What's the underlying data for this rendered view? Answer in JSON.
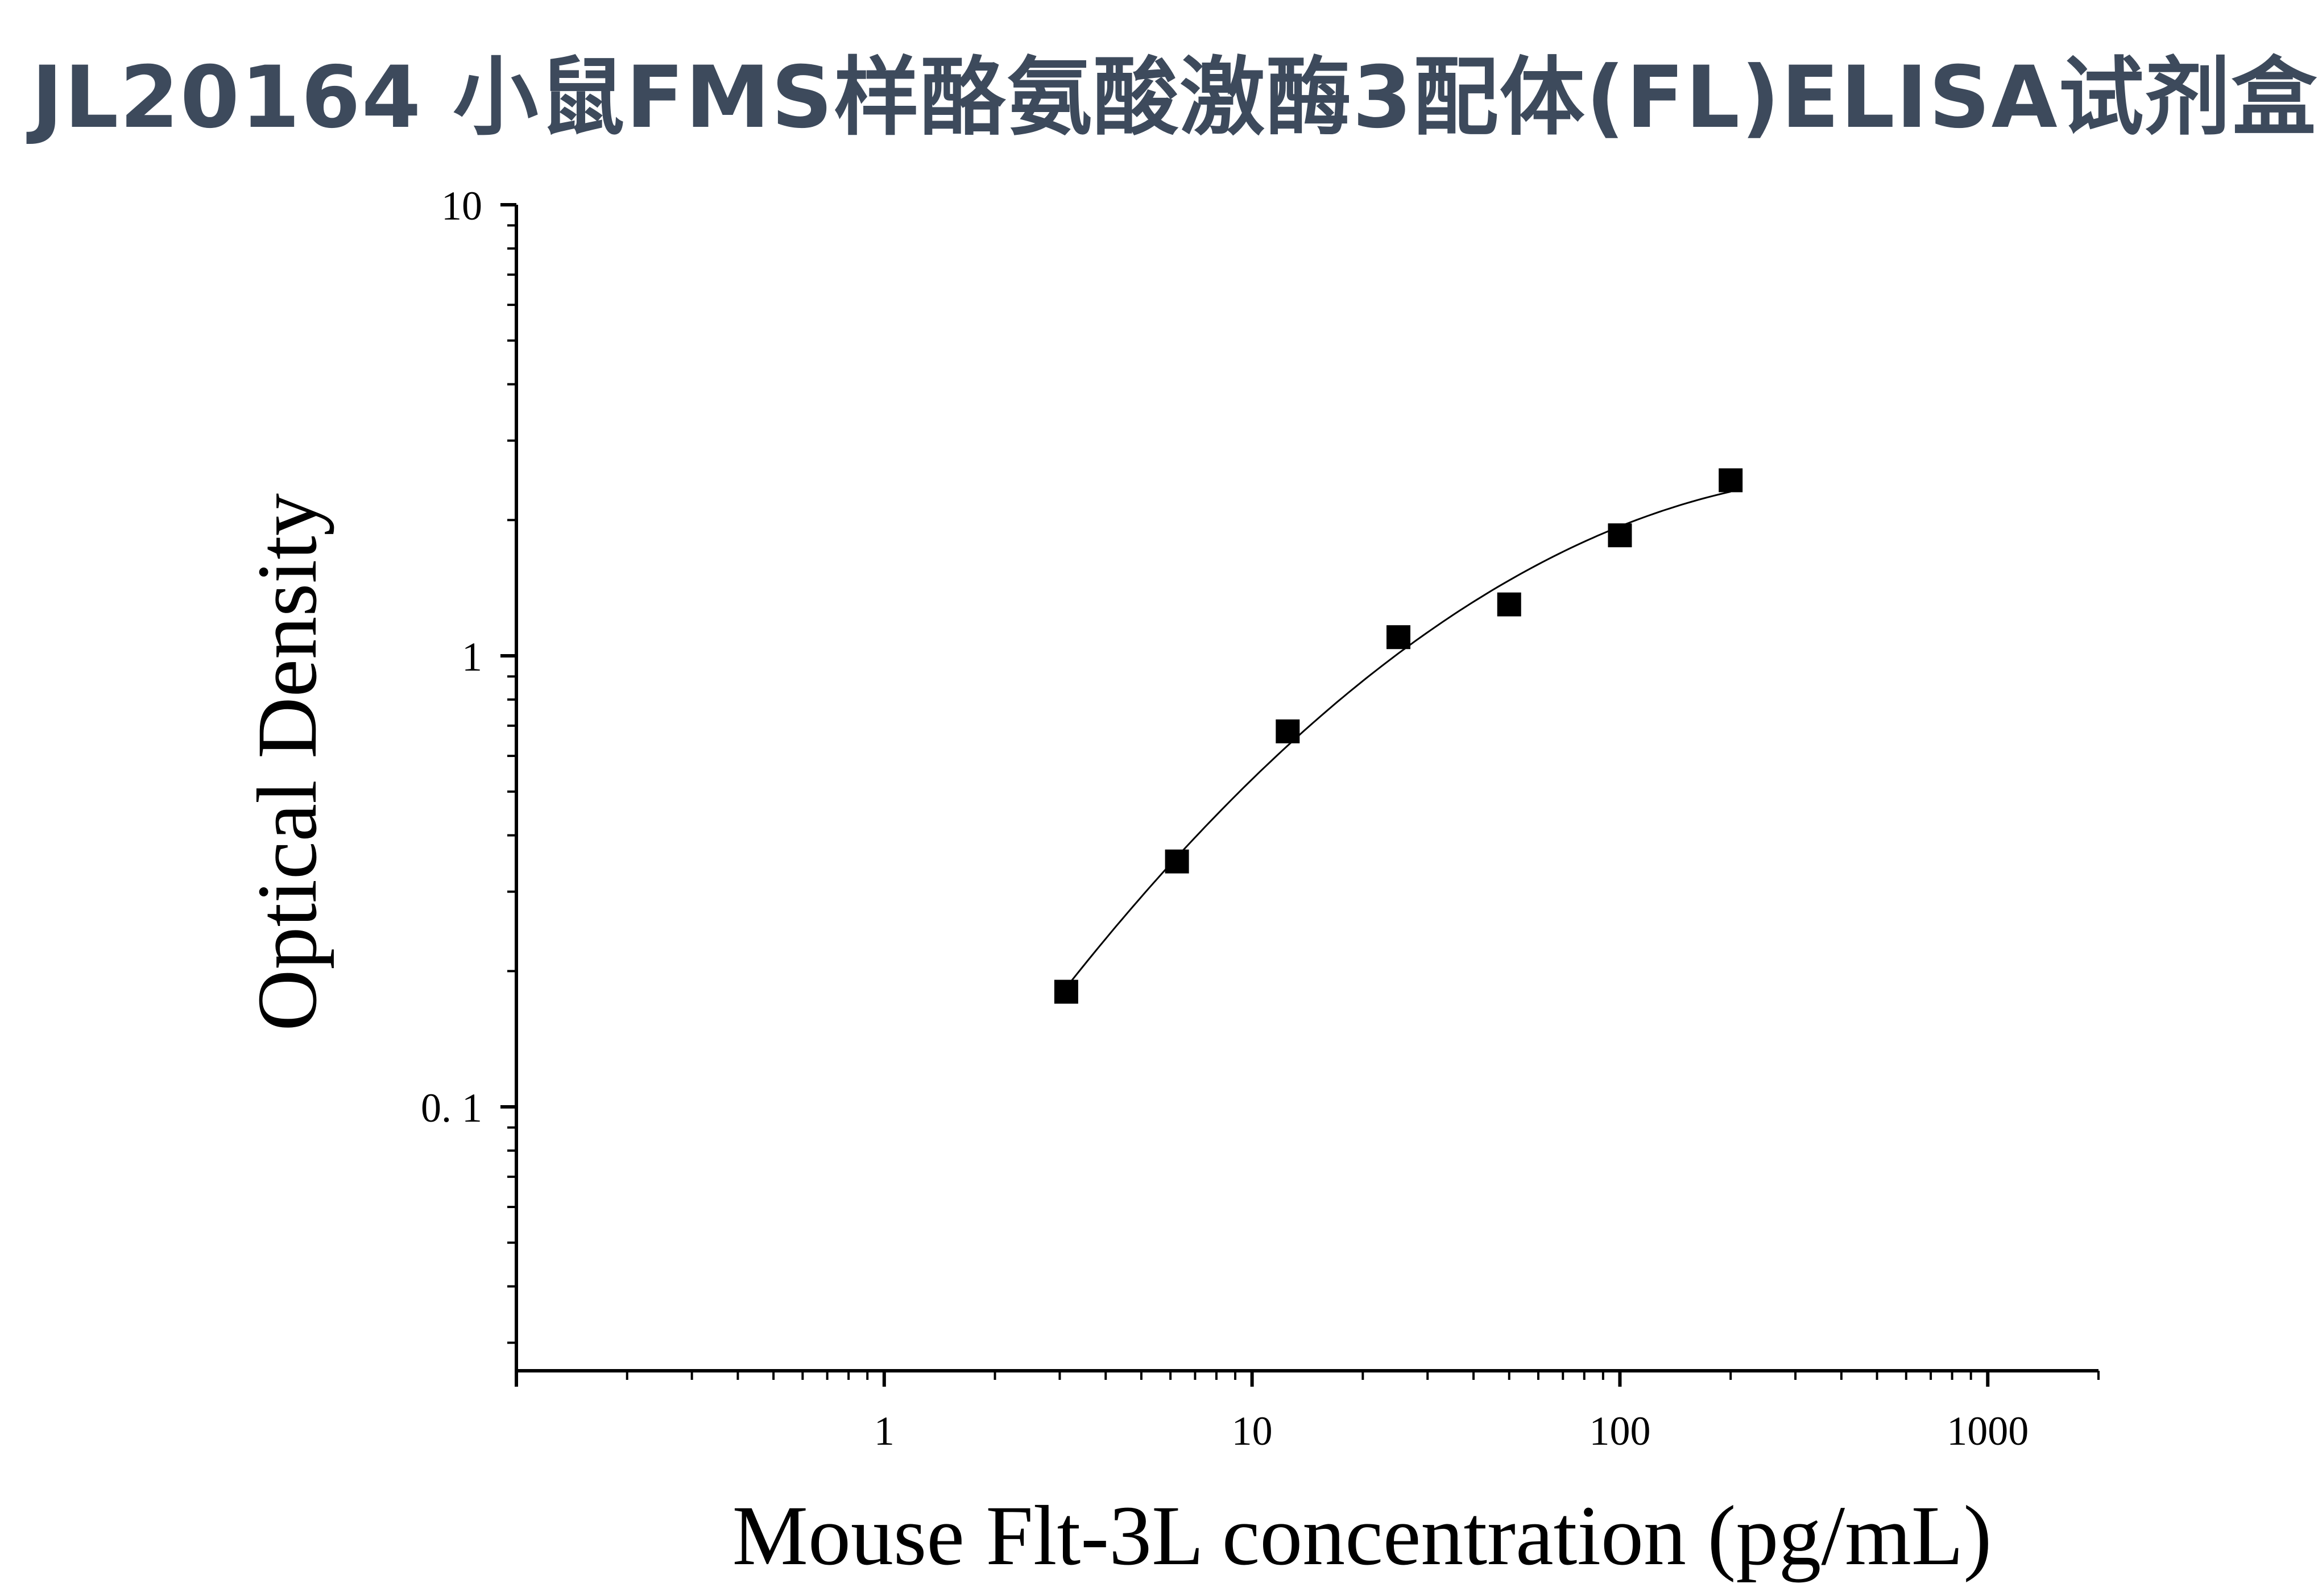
{
  "title": "JL20164 小鼠FMS样酪氨酸激酶3配体(FL)ELISA试剂盒",
  "chart_data": {
    "type": "scatter",
    "title": "JL20164 小鼠FMS样酪氨酸激酶3配体(FL)ELISA试剂盒",
    "xlabel": "Mouse Flt-3L concentration (pg/mL)",
    "ylabel": "Optical Density",
    "xscale": "log",
    "yscale": "log",
    "xlim": [
      0.1,
      2000
    ],
    "ylim": [
      0.026,
      10
    ],
    "xticks": [
      1,
      10,
      100,
      1000
    ],
    "xtick_labels": [
      "1",
      "10",
      "100",
      "1000"
    ],
    "yticks": [
      0.1,
      1,
      10
    ],
    "ytick_labels": [
      "0. 1",
      "1",
      "10"
    ],
    "grid": false,
    "legend": "none",
    "series": [
      {
        "x": [
          3.125,
          6.25,
          12.5,
          25,
          50,
          100,
          200
        ],
        "y": [
          0.18,
          0.35,
          0.68,
          1.1,
          1.3,
          1.85,
          2.45
        ],
        "marker": "square",
        "color": "#000000",
        "fit": "curve"
      }
    ]
  }
}
